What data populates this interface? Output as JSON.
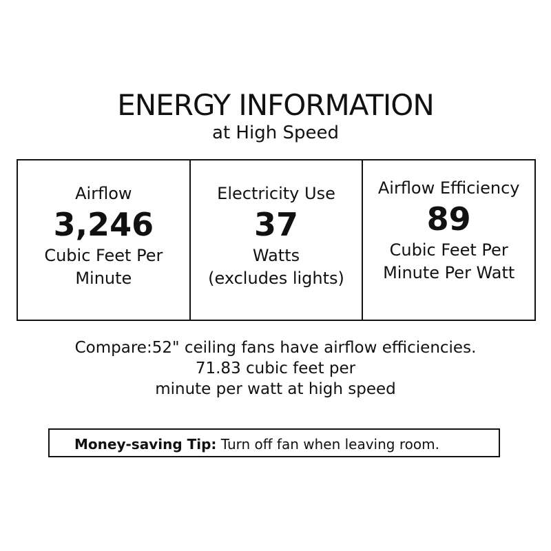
{
  "title": "ENERGY INFORMATION",
  "subtitle": "at High Speed",
  "cells": [
    {
      "label": "Airflow",
      "value": "3,246",
      "unit1": "Cubic Feet Per",
      "unit2": "Minute"
    },
    {
      "label": "Electricity Use",
      "value": "37",
      "unit1": "Watts",
      "unit2": "(excludes lights)"
    },
    {
      "label": "Airflow Efficiency",
      "value": "89",
      "unit1": "Cubic Feet Per",
      "unit2": "Minute Per Watt"
    }
  ],
  "compare": [
    "Compare:52\" ceiling fans have airflow efficiencies.",
    "71.83 cubic feet per",
    "minute per watt at high speed"
  ],
  "tip": {
    "label": "Money-saving Tip:",
    "text": "Turn off fan when leaving room."
  }
}
